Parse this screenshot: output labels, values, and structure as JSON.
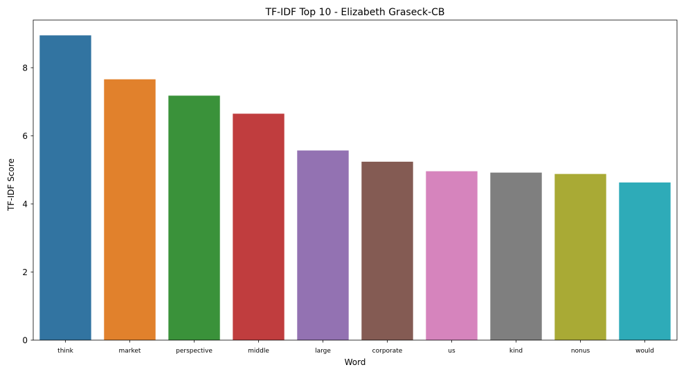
{
  "chart_data": {
    "type": "bar",
    "title": "TF-IDF Top 10 - Elizabeth Graseck-CB",
    "xlabel": "Word",
    "ylabel": "TF-IDF Score",
    "categories": [
      "think",
      "market",
      "perspective",
      "middle",
      "large",
      "corporate",
      "us",
      "kind",
      "nonus",
      "would"
    ],
    "values": [
      8.95,
      7.66,
      7.18,
      6.65,
      5.57,
      5.24,
      4.96,
      4.92,
      4.88,
      4.63
    ],
    "colors": [
      "#3274a1",
      "#e1812c",
      "#3a923a",
      "#c03d3e",
      "#9372b2",
      "#845b53",
      "#d684bd",
      "#7f7f7f",
      "#a9aa35",
      "#2eabb8"
    ],
    "ylim": [
      0,
      9.4
    ],
    "yticks": [
      0,
      2,
      4,
      6,
      8
    ],
    "grid": false,
    "legend": "none"
  }
}
